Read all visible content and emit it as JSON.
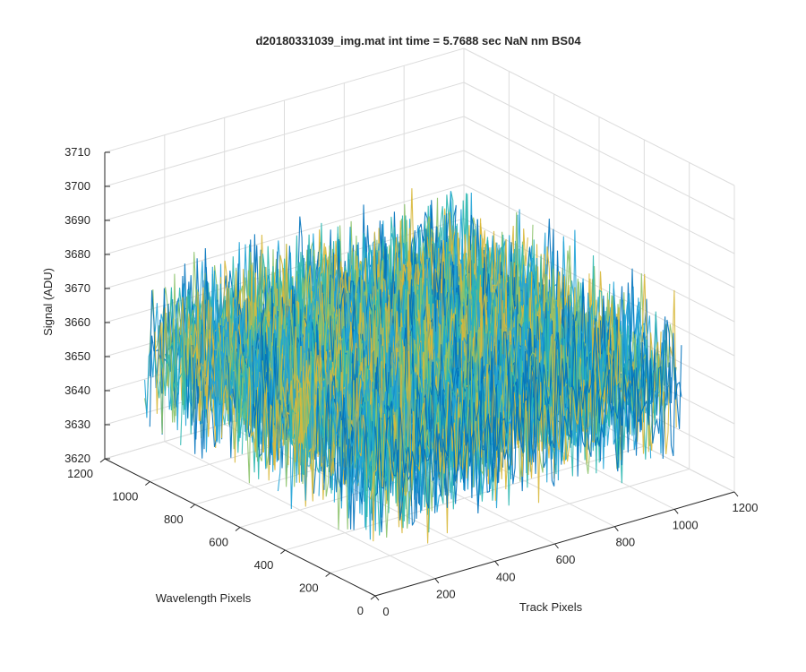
{
  "chart_data": {
    "type": "surface",
    "title": "d20180331039_img.mat int time = 5.7688 sec  NaN nm BS04",
    "xlabel": "Track Pixels",
    "ylabel": "Wavelength Pixels",
    "zlabel": "Signal (ADU)",
    "xlim": [
      0,
      1200
    ],
    "ylim": [
      0,
      1200
    ],
    "zlim": [
      3620,
      3710
    ],
    "xticks": [
      "0",
      "200",
      "400",
      "600",
      "800",
      "1000",
      "1200"
    ],
    "yticks": [
      "0",
      "200",
      "400",
      "600",
      "800",
      "1000",
      "1200"
    ],
    "zticks": [
      "3620",
      "3630",
      "3640",
      "3650",
      "3660",
      "3670",
      "3680",
      "3690",
      "3700",
      "3710"
    ],
    "data_extent": {
      "x": [
        1,
        1024
      ],
      "y": [
        1,
        1024
      ]
    },
    "signal": {
      "mean": 3658,
      "min": 3623,
      "max": 3705,
      "distribution": "noise"
    },
    "colormap": [
      "#0072bd",
      "#20a3d7",
      "#2bb7b0",
      "#8cc26a",
      "#d8b83a"
    ],
    "grid": true
  }
}
